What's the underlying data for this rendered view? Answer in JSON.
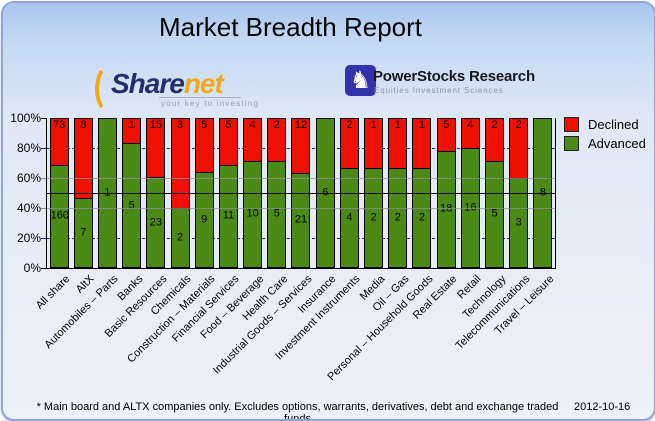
{
  "card": {
    "title": "Market Breadth Report",
    "footnote": "* Main board and ALTX companies only. Excludes options, warrants, derivatives, debt and exchange traded funds",
    "date": "2012-10-16"
  },
  "logos": {
    "sharenet": {
      "name_part1": "Share",
      "name_part2": "net",
      "tagline": "your key to investing"
    },
    "powerstocks": {
      "knight_glyph": "♞",
      "title": "PowerStocks Research",
      "subtitle": "Equities Investment Sciences"
    }
  },
  "legend": [
    {
      "label": "Declined",
      "color": "#ee1100"
    },
    {
      "label": "Advanced",
      "color": "#4a8a15"
    }
  ],
  "chart_data": {
    "type": "bar",
    "stacking": "percent",
    "title": "Market Breadth Report",
    "ylabel": "",
    "xlabel": "",
    "ylim": [
      0,
      100
    ],
    "y_ticks": [
      "100%",
      "80%",
      "60%",
      "40%",
      "20%",
      "0%"
    ],
    "legend_position": "top-right",
    "grid": {
      "navy_dashed_levels": [
        80,
        20
      ],
      "gray_levels": [
        60,
        40
      ],
      "black_levels": [
        50
      ]
    },
    "categories": [
      "All share",
      "AltX",
      "Automobiles – Parts",
      "Banks",
      "Basic Resources",
      "Chemicals",
      "Construction – Materials",
      "Financial Services",
      "Food – Beverage",
      "Health Care",
      "Industrial Goods – Services",
      "Insurance",
      "Investment Instruments",
      "Media",
      "Oil – Gas",
      "Personal – Household Goods",
      "Real Estate",
      "Retail",
      "Technology",
      "Telecommunications",
      "Travel – Leisure"
    ],
    "series": [
      {
        "name": "Declined",
        "color": "#ee1100",
        "values": [
          73,
          8,
          0,
          1,
          15,
          3,
          5,
          5,
          4,
          2,
          12,
          0,
          2,
          1,
          1,
          1,
          5,
          4,
          2,
          2,
          0
        ]
      },
      {
        "name": "Advanced",
        "color": "#4a8a15",
        "values": [
          160,
          7,
          1,
          5,
          23,
          2,
          9,
          11,
          10,
          5,
          21,
          6,
          4,
          2,
          2,
          2,
          18,
          16,
          5,
          3,
          8
        ]
      }
    ]
  }
}
